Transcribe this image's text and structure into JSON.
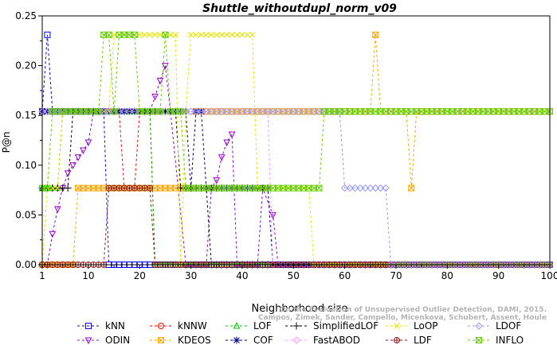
{
  "chart_data": {
    "type": "line",
    "title": "Shuttle_withoutdupl_norm_v09",
    "xlabel": "Neighborhood size",
    "ylabel": "P@n",
    "xlim": [
      1,
      100
    ],
    "ylim": [
      0,
      0.25
    ],
    "x_ticks": [
      1,
      10,
      20,
      30,
      40,
      50,
      60,
      70,
      80,
      90,
      100
    ],
    "y_ticks": [
      "0.00",
      "0.05",
      "0.10",
      "0.15",
      "0.20",
      "0.25"
    ],
    "grid": false,
    "legend_position": "bottom",
    "watermark": [
      "Campos, Zimek, Sander, Campello, Micenkova, Schubert, Assent, Houle",
      "On the Evaluation of Unsupervised Outlier Detection, DAMI, 2015."
    ],
    "series": [
      {
        "name": "kNN",
        "color": "#0000ff",
        "marker": "square",
        "points": [
          [
            1,
            0.154
          ],
          [
            2,
            0.231
          ],
          [
            3,
            0.154
          ],
          [
            13,
            0.154
          ],
          [
            14,
            0.0
          ],
          [
            100,
            0.0
          ]
        ]
      },
      {
        "name": "ODIN",
        "color": "#9400d3",
        "marker": "triangle-down",
        "points": [
          [
            1,
            0.0
          ],
          [
            2,
            0.0
          ],
          [
            3,
            0.031
          ],
          [
            4,
            0.056
          ],
          [
            5,
            0.077
          ],
          [
            6,
            0.092
          ],
          [
            7,
            0.1
          ],
          [
            8,
            0.108
          ],
          [
            9,
            0.115
          ],
          [
            10,
            0.123
          ],
          [
            11,
            0.154
          ],
          [
            22,
            0.154
          ],
          [
            23,
            0.169
          ],
          [
            24,
            0.185
          ],
          [
            25,
            0.2
          ],
          [
            26,
            0.154
          ],
          [
            29,
            0.0
          ],
          [
            33,
            0.0
          ],
          [
            34,
            0.077
          ],
          [
            35,
            0.085
          ],
          [
            36,
            0.108
          ],
          [
            37,
            0.123
          ],
          [
            38,
            0.131
          ],
          [
            39,
            0.0
          ],
          [
            43,
            0.0
          ],
          [
            44,
            0.077
          ],
          [
            46,
            0.05
          ],
          [
            47,
            0.0
          ],
          [
            100,
            0.0
          ]
        ]
      },
      {
        "name": "kNNW",
        "color": "#ff0000",
        "marker": "circle",
        "points": [
          [
            1,
            0.154
          ],
          [
            16,
            0.154
          ],
          [
            17,
            0.077
          ],
          [
            19,
            0.077
          ],
          [
            20,
            0.154
          ],
          [
            22,
            0.154
          ],
          [
            23,
            0.0
          ],
          [
            100,
            0.0
          ]
        ]
      },
      {
        "name": "KDEOS",
        "color": "#ffa500",
        "marker": "square-cross",
        "points": [
          [
            1,
            0.0
          ],
          [
            7,
            0.0
          ],
          [
            8,
            0.077
          ],
          [
            30,
            0.077
          ],
          [
            31,
            0.154
          ],
          [
            65,
            0.154
          ],
          [
            66,
            0.231
          ],
          [
            67,
            0.154
          ],
          [
            72,
            0.154
          ],
          [
            73,
            0.077
          ],
          [
            74,
            0.154
          ],
          [
            100,
            0.154
          ]
        ]
      },
      {
        "name": "LOF",
        "color": "#00cc00",
        "marker": "triangle-up",
        "points": [
          [
            1,
            0.077
          ],
          [
            4,
            0.077
          ],
          [
            5,
            0.154
          ],
          [
            22,
            0.154
          ],
          [
            23,
            0.0
          ],
          [
            100,
            0.0
          ]
        ]
      },
      {
        "name": "COF",
        "color": "#000080",
        "marker": "asterisk",
        "points": [
          [
            1,
            0.154
          ],
          [
            29,
            0.154
          ],
          [
            30,
            0.077
          ],
          [
            31,
            0.154
          ],
          [
            32,
            0.154
          ],
          [
            33,
            0.077
          ],
          [
            45,
            0.077
          ],
          [
            46,
            0.0
          ],
          [
            100,
            0.0
          ]
        ]
      },
      {
        "name": "SimplifiedLOF",
        "color": "#000000",
        "marker": "plus",
        "points": [
          [
            1,
            0.077
          ],
          [
            6,
            0.077
          ],
          [
            7,
            0.154
          ],
          [
            27,
            0.154
          ],
          [
            28,
            0.077
          ],
          [
            33,
            0.077
          ],
          [
            34,
            0.0
          ],
          [
            100,
            0.0
          ]
        ]
      },
      {
        "name": "FastABOD",
        "color": "#ff99ff",
        "marker": "diamond",
        "points": [
          [
            1,
            0.154
          ],
          [
            30,
            0.154
          ],
          [
            31,
            0.154
          ],
          [
            44,
            0.154
          ],
          [
            45,
            0.154
          ],
          [
            46,
            0.0
          ],
          [
            100,
            0.0
          ]
        ]
      },
      {
        "name": "LoOP",
        "color": "#e5e500",
        "marker": "x",
        "points": [
          [
            1,
            0.0
          ],
          [
            2,
            0.077
          ],
          [
            4,
            0.077
          ],
          [
            5,
            0.154
          ],
          [
            14,
            0.154
          ],
          [
            15,
            0.231
          ],
          [
            27,
            0.231
          ],
          [
            28,
            0.0
          ],
          [
            29,
            0.154
          ],
          [
            30,
            0.231
          ],
          [
            42,
            0.231
          ],
          [
            43,
            0.077
          ],
          [
            53,
            0.077
          ],
          [
            54,
            0.0
          ],
          [
            100,
            0.0
          ]
        ]
      },
      {
        "name": "LDF",
        "color": "#8b1a1a",
        "marker": "circle-plus",
        "points": [
          [
            1,
            0.0
          ],
          [
            13,
            0.0
          ],
          [
            14,
            0.077
          ],
          [
            22,
            0.077
          ],
          [
            23,
            0.0
          ],
          [
            100,
            0.0
          ]
        ]
      },
      {
        "name": "LDOF",
        "color": "#9999ff",
        "marker": "diamond",
        "points": [
          [
            1,
            0.154
          ],
          [
            40,
            0.154
          ],
          [
            50,
            0.154
          ],
          [
            59,
            0.154
          ],
          [
            60,
            0.077
          ],
          [
            68,
            0.077
          ],
          [
            69,
            0.0
          ],
          [
            100,
            0.0
          ]
        ]
      },
      {
        "name": "INFLO",
        "color": "#66cc00",
        "marker": "hourglass",
        "points": [
          [
            1,
            0.077
          ],
          [
            2,
            0.077
          ],
          [
            3,
            0.154
          ],
          [
            12,
            0.154
          ],
          [
            13,
            0.231
          ],
          [
            14,
            0.231
          ],
          [
            15,
            0.154
          ],
          [
            16,
            0.231
          ],
          [
            19,
            0.231
          ],
          [
            20,
            0.154
          ],
          [
            24,
            0.154
          ],
          [
            25,
            0.231
          ],
          [
            26,
            0.154
          ],
          [
            28,
            0.154
          ],
          [
            29,
            0.077
          ],
          [
            50,
            0.077
          ],
          [
            55,
            0.077
          ],
          [
            56,
            0.154
          ],
          [
            100,
            0.154
          ]
        ]
      }
    ]
  }
}
